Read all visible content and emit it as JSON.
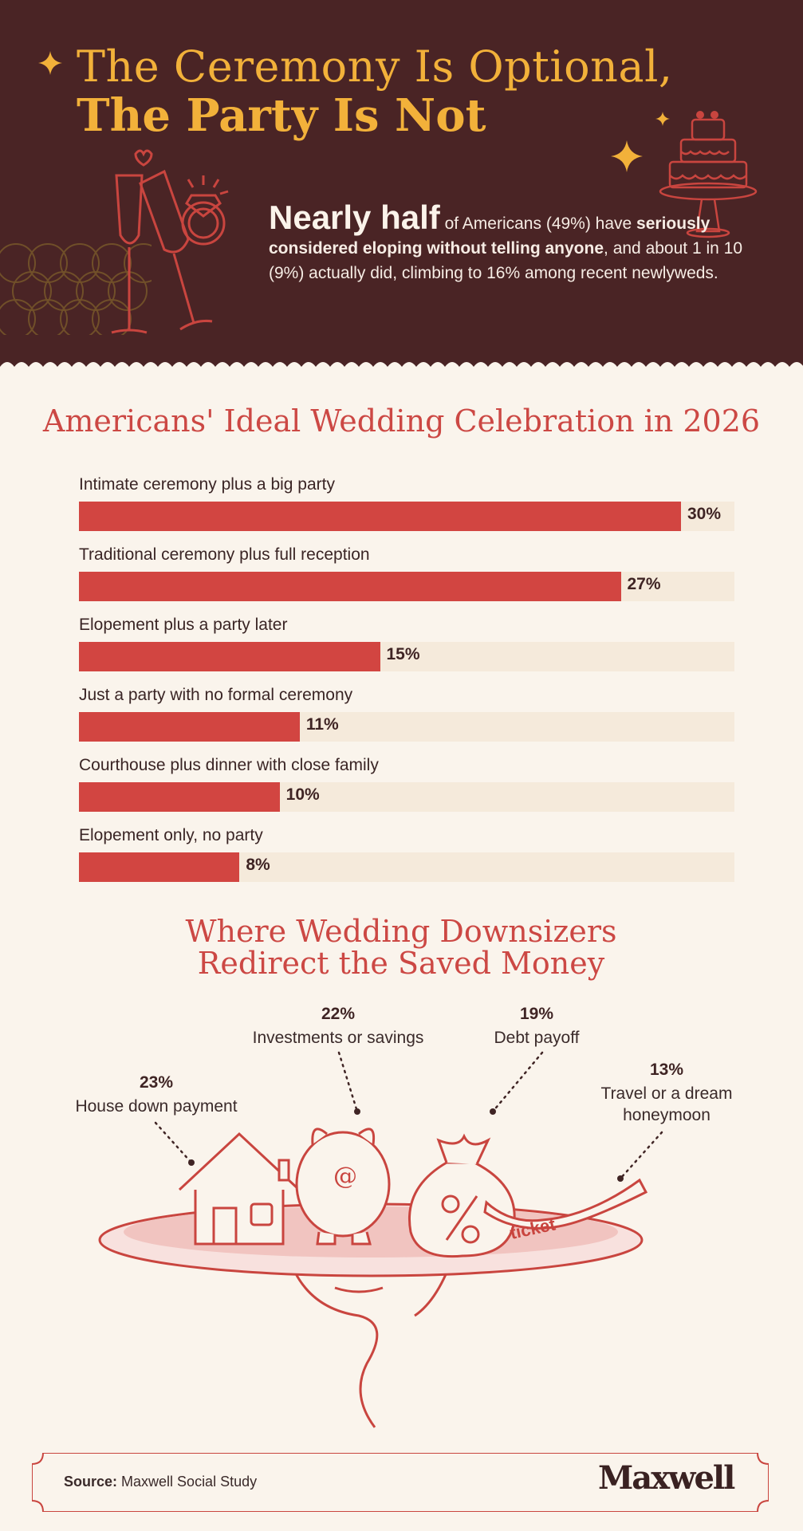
{
  "header": {
    "title_line1": "The Ceremony Is Optional,",
    "title_line2": "The Party Is Not",
    "intro_big": "Nearly half",
    "intro_rest1": " of Americans (49%) have ",
    "intro_bold": "seriously considered eloping without telling anyone",
    "intro_rest2": ", and about 1 in 10 (9%) actually did, climbing to 16% among recent newlyweds."
  },
  "colors": {
    "hero_bg": "#4a2425",
    "accent_gold": "#f2b13a",
    "bar_red": "#d24541",
    "track_cream": "#f5eadb",
    "page_bg": "#faf4ec"
  },
  "chart_data": [
    {
      "type": "bar",
      "orientation": "horizontal",
      "title": "Americans' Ideal Wedding Celebration in 2026",
      "categories": [
        "Intimate ceremony plus a big party",
        "Traditional ceremony plus full reception",
        "Elopement plus a party later",
        "Just a party with no formal ceremony",
        "Courthouse plus dinner with close family",
        "Elopement only, no party"
      ],
      "values": [
        30,
        27,
        15,
        11,
        10,
        8
      ],
      "value_labels": [
        "30%",
        "27%",
        "15%",
        "11%",
        "10%",
        "8%"
      ],
      "xlim": [
        0,
        30
      ]
    },
    {
      "type": "table",
      "title": "Where Wedding Downsizers Redirect the Saved Money",
      "categories": [
        "House down payment",
        "Investments or savings",
        "Debt payoff",
        "Travel or a dream honeymoon"
      ],
      "values": [
        23,
        22,
        19,
        13
      ],
      "value_labels": [
        "23%",
        "22%",
        "19%",
        "13%"
      ]
    }
  ],
  "illustration": {
    "ticket_text": "ticket"
  },
  "footer": {
    "source_label": "Source:",
    "source_text": " Maxwell Social Study",
    "logo": "Maxwell"
  }
}
